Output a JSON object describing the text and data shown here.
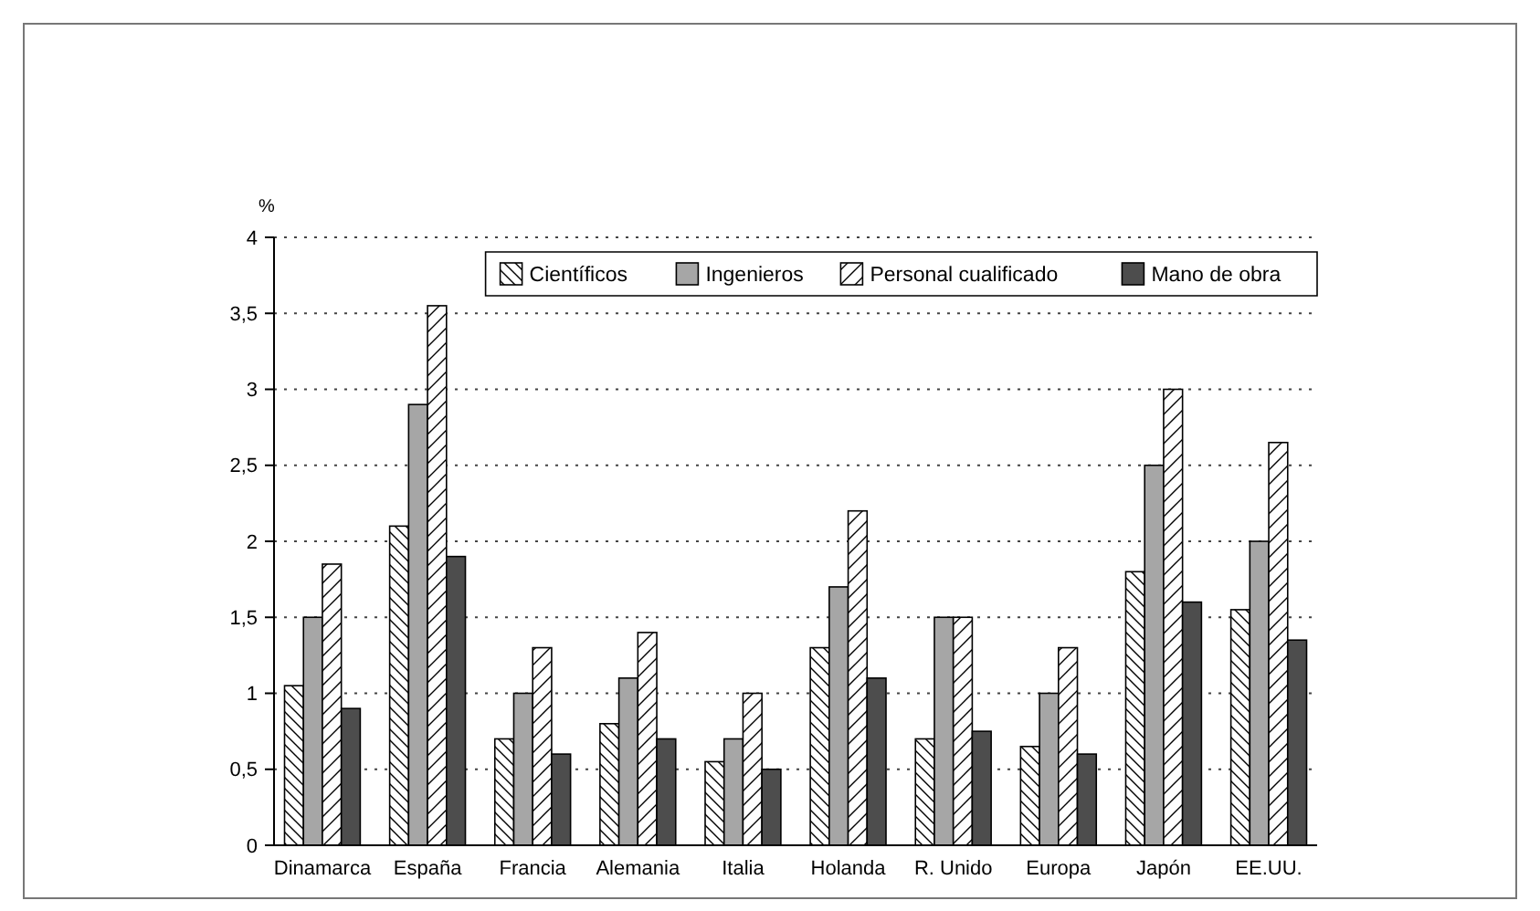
{
  "chart_data": {
    "type": "bar",
    "ylabel": "%",
    "categories": [
      "Dinamarca",
      "España",
      "Francia",
      "Alemania",
      "Italia",
      "Holanda",
      "R. Unido",
      "Europa",
      "Japón",
      "EE.UU."
    ],
    "series": [
      {
        "name": "Científicos",
        "color": "#ffffff",
        "values": [
          1.05,
          2.1,
          0.7,
          0.8,
          0.55,
          1.3,
          0.7,
          0.65,
          1.8,
          1.55
        ]
      },
      {
        "name": "Ingenieros",
        "color": "#a6a6a6",
        "values": [
          1.5,
          2.9,
          1.0,
          1.1,
          0.7,
          1.7,
          1.5,
          1.0,
          2.5,
          2.0
        ]
      },
      {
        "name": "Personal cualificado",
        "color": "#fefefe",
        "values": [
          1.85,
          3.55,
          1.3,
          1.4,
          1.0,
          2.2,
          1.5,
          1.3,
          3.0,
          2.65
        ]
      },
      {
        "name": "Mano de obra",
        "color": "#4d4d4d",
        "values": [
          0.9,
          1.9,
          0.6,
          0.7,
          0.5,
          1.1,
          0.75,
          0.6,
          1.6,
          1.35
        ]
      }
    ],
    "ylim": [
      0,
      4
    ],
    "yticks": [
      0,
      {
        "value": 0.5,
        "label": "0,5"
      },
      1,
      {
        "value": 1.5,
        "label": "1,5"
      },
      2,
      {
        "value": 2.5,
        "label": "2,5"
      },
      3,
      {
        "value": 3.5,
        "label": "3,5"
      },
      4
    ],
    "grid": "y",
    "legend": "top right"
  }
}
